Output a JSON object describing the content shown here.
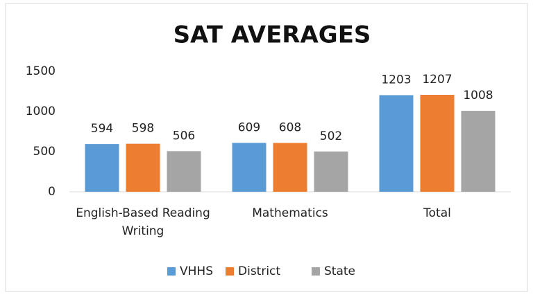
{
  "chart_data": {
    "type": "bar",
    "title": "SAT AVERAGES",
    "categories": [
      "English-Based Reading Writing",
      "Mathematics",
      "Total"
    ],
    "series": [
      {
        "name": "VHHS",
        "color": "#5b9bd5",
        "values": [
          594,
          609,
          1203
        ]
      },
      {
        "name": "District",
        "color": "#ed7d31",
        "values": [
          598,
          608,
          1207
        ]
      },
      {
        "name": "State",
        "color": "#a5a5a5",
        "values": [
          506,
          502,
          1008
        ]
      }
    ],
    "ylim": [
      0,
      1500
    ],
    "yticks": [
      0,
      500,
      1000,
      1500
    ],
    "grid": false,
    "legend": "bottom"
  }
}
